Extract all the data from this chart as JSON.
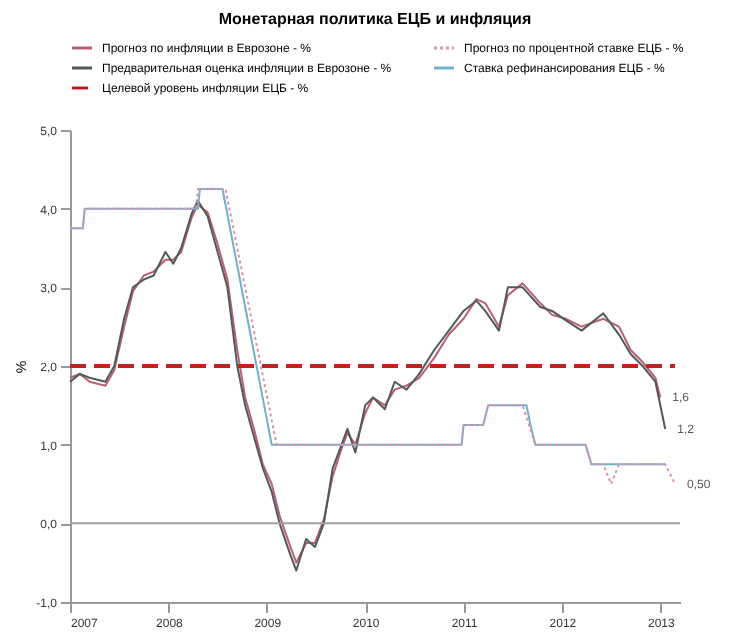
{
  "chart_data": {
    "type": "line",
    "title": "Монетарная политика ЕЦБ и инфляция",
    "ylabel": "%",
    "xlim": [
      2007,
      2013.2
    ],
    "xticks": [
      2007,
      2008,
      2009,
      2010,
      2011,
      2012,
      2013
    ],
    "ylim": [
      -1,
      5
    ],
    "yticks": [
      {
        "value": -1,
        "label": "-1,0"
      },
      {
        "value": 0,
        "label": "0,0"
      },
      {
        "value": 1,
        "label": "1,0"
      },
      {
        "value": 2,
        "label": "2,0"
      },
      {
        "value": 3,
        "label": "3,0"
      },
      {
        "value": 4,
        "label": "4,0"
      },
      {
        "value": 5,
        "label": "5,0"
      }
    ],
    "grid": false,
    "legend": "top",
    "marker": "none",
    "series": [
      {
        "name": "Прогноз по инфляции в Еврозоне - %",
        "color": "#b86070",
        "x": [
          2007.0,
          2007.1,
          2007.2,
          2007.36,
          2007.45,
          2007.55,
          2007.64,
          2007.75,
          2007.85,
          2007.97,
          2008.05,
          2008.13,
          2008.24,
          2008.3,
          2008.4,
          2008.5,
          2008.6,
          2008.7,
          2008.78,
          2008.87,
          2008.96,
          2009.05,
          2009.13,
          2009.24,
          2009.3,
          2009.4,
          2009.49,
          2009.58,
          2009.67,
          2009.76,
          2009.82,
          2009.9,
          2010.0,
          2010.08,
          2010.2,
          2010.3,
          2010.42,
          2010.55,
          2010.7,
          2010.85,
          2011.0,
          2011.13,
          2011.22,
          2011.36,
          2011.45,
          2011.6,
          2011.78,
          2011.9,
          2012.04,
          2012.2,
          2012.42,
          2012.58,
          2012.7,
          2012.82,
          2012.95,
          2013.0
        ],
        "values": [
          1.85,
          1.9,
          1.8,
          1.75,
          1.95,
          2.5,
          2.95,
          3.15,
          3.2,
          3.35,
          3.35,
          3.45,
          3.9,
          4.05,
          3.95,
          3.55,
          3.1,
          2.2,
          1.6,
          1.2,
          0.75,
          0.5,
          0.1,
          -0.3,
          -0.5,
          -0.25,
          -0.25,
          0.05,
          0.6,
          0.95,
          1.15,
          1.0,
          1.4,
          1.6,
          1.5,
          1.7,
          1.75,
          1.85,
          2.1,
          2.4,
          2.6,
          2.85,
          2.8,
          2.5,
          2.9,
          3.05,
          2.8,
          2.65,
          2.6,
          2.5,
          2.6,
          2.5,
          2.2,
          2.05,
          1.85,
          1.6
        ]
      },
      {
        "name": "Прогноз по процентной ставке ЕЦБ - %",
        "color": "#e090b0",
        "line_style": "dotted",
        "x": [
          2007.0,
          2007.13,
          2007.15,
          2008.28,
          2008.3,
          2008.58,
          2009.1,
          2010.98,
          2011.0,
          2011.2,
          2011.25,
          2011.6,
          2011.73,
          2012.24,
          2012.3,
          2012.42,
          2012.5,
          2012.58,
          2013.05,
          2013.15
        ],
        "values": [
          3.75,
          3.75,
          4.0,
          4.0,
          4.25,
          4.25,
          1.0,
          1.0,
          1.25,
          1.25,
          1.5,
          1.5,
          1.0,
          1.0,
          0.75,
          0.75,
          0.5,
          0.75,
          0.75,
          0.5
        ]
      },
      {
        "name": "Предварительная оценка инфляции в Еврозоне - %",
        "color": "#505a58",
        "x": [
          2007.0,
          2007.1,
          2007.2,
          2007.36,
          2007.45,
          2007.55,
          2007.64,
          2007.75,
          2007.85,
          2007.97,
          2008.05,
          2008.13,
          2008.24,
          2008.3,
          2008.4,
          2008.5,
          2008.6,
          2008.7,
          2008.78,
          2008.87,
          2008.96,
          2009.05,
          2009.13,
          2009.24,
          2009.3,
          2009.4,
          2009.49,
          2009.58,
          2009.67,
          2009.76,
          2009.82,
          2009.9,
          2010.0,
          2010.08,
          2010.2,
          2010.3,
          2010.42,
          2010.55,
          2010.7,
          2010.85,
          2011.0,
          2011.13,
          2011.22,
          2011.36,
          2011.45,
          2011.6,
          2011.78,
          2011.9,
          2012.04,
          2012.2,
          2012.42,
          2012.58,
          2012.7,
          2012.82,
          2012.95,
          2013.05
        ],
        "values": [
          1.8,
          1.9,
          1.85,
          1.8,
          2.0,
          2.6,
          3.0,
          3.1,
          3.15,
          3.45,
          3.3,
          3.5,
          3.95,
          4.1,
          3.9,
          3.45,
          3.0,
          2.0,
          1.5,
          1.1,
          0.7,
          0.4,
          0.0,
          -0.4,
          -0.6,
          -0.2,
          -0.3,
          0.0,
          0.7,
          1.0,
          1.2,
          0.9,
          1.5,
          1.6,
          1.45,
          1.8,
          1.7,
          1.9,
          2.2,
          2.45,
          2.7,
          2.83,
          2.7,
          2.45,
          3.0,
          3.0,
          2.75,
          2.7,
          2.58,
          2.45,
          2.67,
          2.4,
          2.15,
          2.0,
          1.8,
          1.2
        ]
      },
      {
        "name": "Ставка рефинансирования ЕЦБ - %",
        "color": "#70b0c8",
        "x": [
          2007.0,
          2007.13,
          2007.15,
          2008.3,
          2008.32,
          2008.55,
          2009.05,
          2010.98,
          2011.0,
          2011.2,
          2011.25,
          2011.64,
          2011.68,
          2011.73,
          2012.24,
          2012.3,
          2013.05
        ],
        "values": [
          3.75,
          3.75,
          4.0,
          4.0,
          4.25,
          4.25,
          1.0,
          1.0,
          1.25,
          1.25,
          1.5,
          1.5,
          1.25,
          1.0,
          1.0,
          0.75,
          0.75
        ]
      },
      {
        "name": "Целевой уровень инфляции ЕЦБ - %",
        "color": "#c02020",
        "line_style": "dashed",
        "x": [
          2007.0,
          2013.15
        ],
        "values": [
          2,
          2
        ]
      }
    ],
    "ref_lines": [
      {
        "axis": "y",
        "value": 0,
        "color": "#a0a0a0"
      }
    ],
    "annotations": [
      {
        "text": "1,6",
        "x": 2013.0,
        "y": 1.6
      },
      {
        "text": "1,2",
        "x": 2013.05,
        "y": 1.2
      },
      {
        "text": "0,50",
        "x": 2013.15,
        "y": 0.5
      }
    ]
  }
}
